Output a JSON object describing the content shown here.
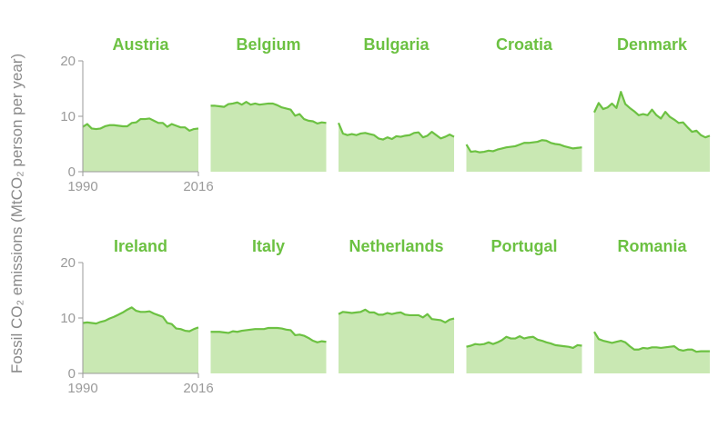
{
  "colors": {
    "line": "#6cc142",
    "fill": "#c9e8b3",
    "title": "#6cc142",
    "axis": "#9a9a9a",
    "ylabel": "#8a8a8a"
  },
  "ylabel": "Fossil CO₂ emissions (MtCO₂ person per year)",
  "chart_data": {
    "type": "area",
    "layout": "small-multiples",
    "rows": 2,
    "cols": 5,
    "x": [
      1990,
      1991,
      1992,
      1993,
      1994,
      1995,
      1996,
      1997,
      1998,
      1999,
      2000,
      2001,
      2002,
      2003,
      2004,
      2005,
      2006,
      2007,
      2008,
      2009,
      2010,
      2011,
      2012,
      2013,
      2014,
      2015,
      2016
    ],
    "xlim": [
      1990,
      2016
    ],
    "ylim": [
      0,
      20
    ],
    "yticks": [
      0,
      10,
      20
    ],
    "xticks": [
      1990,
      2016
    ],
    "series": [
      {
        "name": "Austria",
        "values": [
          8.1,
          8.6,
          7.8,
          7.7,
          7.8,
          8.2,
          8.4,
          8.4,
          8.3,
          8.2,
          8.2,
          8.8,
          8.9,
          9.5,
          9.5,
          9.6,
          9.2,
          8.8,
          8.8,
          8.1,
          8.6,
          8.3,
          8.0,
          8.0,
          7.4,
          7.7,
          7.8
        ]
      },
      {
        "name": "Belgium",
        "values": [
          11.9,
          11.9,
          11.8,
          11.7,
          12.2,
          12.3,
          12.5,
          12.1,
          12.6,
          12.1,
          12.3,
          12.1,
          12.2,
          12.3,
          12.3,
          12.0,
          11.6,
          11.4,
          11.2,
          10.1,
          10.4,
          9.5,
          9.2,
          9.1,
          8.7,
          8.9,
          8.8
        ]
      },
      {
        "name": "Bulgaria",
        "values": [
          8.8,
          6.9,
          6.6,
          6.8,
          6.6,
          6.9,
          7.0,
          6.8,
          6.6,
          6.0,
          5.8,
          6.2,
          5.9,
          6.4,
          6.3,
          6.5,
          6.6,
          7.0,
          7.1,
          6.2,
          6.5,
          7.2,
          6.6,
          6.0,
          6.3,
          6.7,
          6.3
        ]
      },
      {
        "name": "Croatia",
        "values": [
          4.9,
          3.6,
          3.7,
          3.5,
          3.6,
          3.8,
          3.7,
          4.0,
          4.2,
          4.4,
          4.5,
          4.6,
          4.9,
          5.2,
          5.2,
          5.3,
          5.4,
          5.7,
          5.6,
          5.2,
          5.0,
          4.9,
          4.6,
          4.4,
          4.2,
          4.3,
          4.4
        ]
      },
      {
        "name": "Denmark",
        "values": [
          10.7,
          12.4,
          11.3,
          11.6,
          12.3,
          11.5,
          14.4,
          12.2,
          11.5,
          10.9,
          10.2,
          10.4,
          10.2,
          11.2,
          10.2,
          9.6,
          10.8,
          9.9,
          9.4,
          8.8,
          8.9,
          8.0,
          7.2,
          7.4,
          6.6,
          6.2,
          6.5
        ]
      },
      {
        "name": "Ireland",
        "values": [
          9.1,
          9.2,
          9.1,
          9.0,
          9.3,
          9.5,
          9.9,
          10.2,
          10.6,
          11.0,
          11.5,
          11.9,
          11.3,
          11.1,
          11.1,
          11.2,
          10.8,
          10.5,
          10.2,
          9.1,
          8.9,
          8.1,
          8.0,
          7.7,
          7.6,
          8.0,
          8.3
        ]
      },
      {
        "name": "Italy",
        "values": [
          7.5,
          7.5,
          7.5,
          7.4,
          7.3,
          7.6,
          7.5,
          7.7,
          7.8,
          7.9,
          8.0,
          8.0,
          8.0,
          8.2,
          8.2,
          8.2,
          8.1,
          7.9,
          7.8,
          6.9,
          7.0,
          6.8,
          6.4,
          5.9,
          5.6,
          5.8,
          5.7
        ]
      },
      {
        "name": "Netherlands",
        "values": [
          10.7,
          11.1,
          11.0,
          10.9,
          11.0,
          11.1,
          11.5,
          11.0,
          11.0,
          10.6,
          10.6,
          10.9,
          10.7,
          10.9,
          11.0,
          10.6,
          10.5,
          10.5,
          10.5,
          10.1,
          10.7,
          9.8,
          9.7,
          9.6,
          9.2,
          9.7,
          9.9
        ]
      },
      {
        "name": "Portugal",
        "values": [
          4.8,
          5.0,
          5.3,
          5.2,
          5.3,
          5.6,
          5.3,
          5.6,
          6.0,
          6.6,
          6.3,
          6.3,
          6.7,
          6.3,
          6.5,
          6.6,
          6.1,
          5.9,
          5.6,
          5.4,
          5.1,
          5.0,
          4.9,
          4.8,
          4.6,
          5.1,
          5.0
        ]
      },
      {
        "name": "Romania",
        "values": [
          7.5,
          6.2,
          5.9,
          5.7,
          5.5,
          5.7,
          5.9,
          5.6,
          4.9,
          4.3,
          4.3,
          4.6,
          4.5,
          4.7,
          4.7,
          4.6,
          4.7,
          4.8,
          4.9,
          4.3,
          4.1,
          4.3,
          4.3,
          3.9,
          4.0,
          4.0,
          4.0
        ]
      }
    ]
  }
}
